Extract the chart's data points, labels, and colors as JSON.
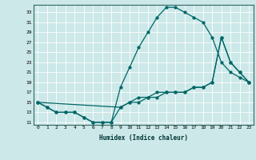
{
  "xlabel": "Humidex (Indice chaleur)",
  "background_color": "#cce8e8",
  "grid_color": "#ffffff",
  "line_color": "#006666",
  "xlim": [
    -0.5,
    23.5
  ],
  "ylim": [
    10.5,
    34.5
  ],
  "xticks": [
    0,
    1,
    2,
    3,
    4,
    5,
    6,
    7,
    8,
    9,
    10,
    11,
    12,
    13,
    14,
    15,
    16,
    17,
    18,
    19,
    20,
    21,
    22,
    23
  ],
  "yticks": [
    11,
    13,
    15,
    17,
    19,
    21,
    23,
    25,
    27,
    29,
    31,
    33
  ],
  "line1_x": [
    0,
    1,
    2,
    3,
    4,
    5,
    6,
    7,
    8,
    9,
    10,
    11,
    12,
    13,
    14,
    15,
    16,
    17,
    18,
    19,
    20,
    21,
    22,
    23
  ],
  "line1_y": [
    15,
    14,
    13,
    13,
    13,
    12,
    11,
    11,
    11,
    18,
    22,
    26,
    29,
    32,
    34,
    34,
    33,
    32,
    31,
    28,
    23,
    21,
    20,
    19
  ],
  "line2_x": [
    0,
    9,
    10,
    11,
    12,
    13,
    14,
    15,
    16,
    17,
    18,
    19,
    20,
    21,
    22,
    23
  ],
  "line2_y": [
    15,
    14,
    15,
    16,
    16,
    17,
    17,
    17,
    17,
    18,
    18,
    19,
    28,
    23,
    21,
    19
  ],
  "line3_x": [
    0,
    1,
    2,
    3,
    4,
    5,
    6,
    7,
    8,
    9,
    10,
    11,
    12,
    13,
    14,
    15,
    16,
    17,
    18,
    19,
    20,
    21,
    22,
    23
  ],
  "line3_y": [
    15,
    14,
    13,
    13,
    13,
    12,
    11,
    11,
    11,
    14,
    15,
    15,
    16,
    16,
    17,
    17,
    17,
    18,
    18,
    19,
    28,
    23,
    21,
    19
  ]
}
